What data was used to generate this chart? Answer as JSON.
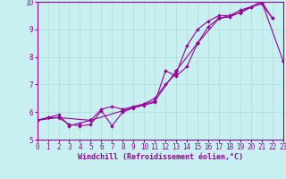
{
  "xlabel": "Windchill (Refroidissement éolien,°C)",
  "xlim": [
    0,
    23
  ],
  "ylim": [
    5,
    10
  ],
  "xticks": [
    0,
    1,
    2,
    3,
    4,
    5,
    6,
    7,
    8,
    9,
    10,
    11,
    12,
    13,
    14,
    15,
    16,
    17,
    18,
    19,
    20,
    21,
    22,
    23
  ],
  "yticks": [
    5,
    6,
    7,
    8,
    9,
    10
  ],
  "bg_color": "#c8f0f0",
  "line_color": "#990099",
  "grid_color": "#aadddd",
  "lines": [
    {
      "x": [
        0,
        1,
        2,
        3,
        4,
        5,
        6,
        7,
        8,
        9,
        10,
        11,
        12,
        13,
        14,
        15,
        16,
        17,
        18,
        19,
        20,
        21,
        22
      ],
      "y": [
        5.7,
        5.8,
        5.8,
        5.55,
        5.5,
        5.55,
        6.05,
        5.5,
        6.0,
        6.15,
        6.25,
        6.35,
        7.5,
        7.3,
        7.65,
        8.5,
        9.1,
        9.4,
        9.45,
        9.62,
        9.82,
        10.0,
        9.4
      ]
    },
    {
      "x": [
        0,
        1,
        2,
        3,
        4,
        5,
        6,
        7,
        8,
        9,
        10,
        11,
        12,
        13,
        14,
        15,
        16,
        17,
        18,
        19,
        20,
        21,
        22
      ],
      "y": [
        5.7,
        5.8,
        5.9,
        5.5,
        5.6,
        5.7,
        6.1,
        6.2,
        6.1,
        6.2,
        6.3,
        6.5,
        7.0,
        7.4,
        8.4,
        9.0,
        9.3,
        9.5,
        9.5,
        9.7,
        9.82,
        9.92,
        9.4
      ]
    },
    {
      "x": [
        0,
        2,
        5,
        8,
        11,
        13,
        15,
        17,
        19,
        21,
        23
      ],
      "y": [
        5.7,
        5.8,
        5.7,
        6.05,
        6.4,
        7.5,
        8.5,
        9.4,
        9.6,
        10.0,
        7.85
      ]
    }
  ]
}
